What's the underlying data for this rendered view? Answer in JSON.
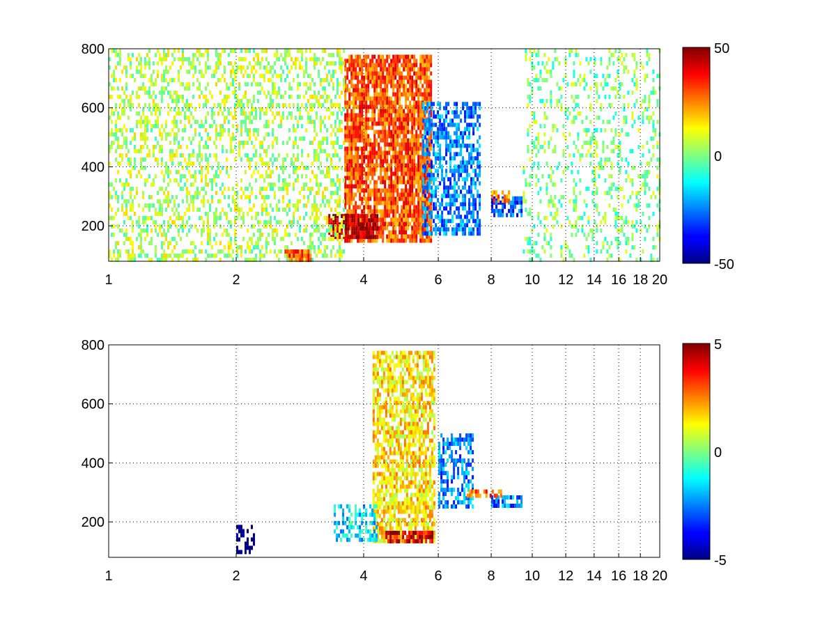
{
  "figure": {
    "background": "#ffffff",
    "colormap": "jet"
  },
  "chart_data": [
    {
      "type": "heatmap",
      "title": "",
      "xlabel": "",
      "ylabel": "",
      "x_scale": "log",
      "xlim": [
        1,
        20
      ],
      "ylim": [
        80,
        800
      ],
      "x_ticks": [
        1,
        2,
        4,
        6,
        8,
        10,
        12,
        14,
        16,
        18,
        20
      ],
      "x_tick_labels": [
        "1",
        "2",
        "4",
        "6",
        "8",
        "10",
        "12",
        "14",
        "16",
        "18",
        "20"
      ],
      "y_ticks": [
        200,
        400,
        600,
        800
      ],
      "y_tick_labels": [
        "200",
        "400",
        "600",
        "800"
      ],
      "grid": true,
      "colorbar": {
        "min": -50,
        "max": 50,
        "ticks": [
          50,
          0,
          -50
        ],
        "tick_labels": [
          "50",
          "0",
          "-50"
        ]
      },
      "features": [
        {
          "x": [
            3.6,
            5.8
          ],
          "y": [
            150,
            780
          ],
          "value": 30,
          "density": 0.85
        },
        {
          "x": [
            3.3,
            4.3
          ],
          "y": [
            160,
            240
          ],
          "value": 45,
          "density": 0.9
        },
        {
          "x": [
            5.5,
            7.5
          ],
          "y": [
            180,
            620
          ],
          "value": -25,
          "density": 0.6
        },
        {
          "x": [
            8.0,
            9.4
          ],
          "y": [
            240,
            300
          ],
          "value": -30,
          "density": 0.7
        },
        {
          "x": [
            8.0,
            8.8
          ],
          "y": [
            280,
            320
          ],
          "value": 25,
          "density": 0.6
        },
        {
          "x": [
            1.0,
            3.6
          ],
          "y": [
            80,
            800
          ],
          "value": 5,
          "density": 0.35
        },
        {
          "x": [
            2.6,
            3.0
          ],
          "y": [
            80,
            120
          ],
          "value": 30,
          "density": 0.8
        },
        {
          "x": [
            9.5,
            20.0
          ],
          "y": [
            80,
            800
          ],
          "value": 0,
          "density": 0.22
        }
      ]
    },
    {
      "type": "heatmap",
      "title": "",
      "xlabel": "",
      "ylabel": "",
      "x_scale": "log",
      "xlim": [
        1,
        20
      ],
      "ylim": [
        80,
        800
      ],
      "x_ticks": [
        1,
        2,
        4,
        6,
        8,
        10,
        12,
        14,
        16,
        18,
        20
      ],
      "x_tick_labels": [
        "1",
        "2",
        "4",
        "6",
        "8",
        "10",
        "12",
        "14",
        "16",
        "18",
        "20"
      ],
      "y_ticks": [
        200,
        400,
        600,
        800
      ],
      "y_tick_labels": [
        "200",
        "400",
        "600",
        "800"
      ],
      "grid": true,
      "colorbar": {
        "min": -5,
        "max": 5,
        "ticks": [
          5,
          0,
          -5
        ],
        "tick_labels": [
          "5",
          "0",
          "-5"
        ]
      },
      "features": [
        {
          "x": [
            4.2,
            5.9
          ],
          "y": [
            140,
            780
          ],
          "value": 1.5,
          "density": 0.7
        },
        {
          "x": [
            3.4,
            4.3
          ],
          "y": [
            140,
            260
          ],
          "value": -1.5,
          "density": 0.5
        },
        {
          "x": [
            4.5,
            5.8
          ],
          "y": [
            130,
            170
          ],
          "value": 4,
          "density": 0.8
        },
        {
          "x": [
            6.0,
            7.2
          ],
          "y": [
            250,
            500
          ],
          "value": -2.5,
          "density": 0.55
        },
        {
          "x": [
            8.0,
            9.4
          ],
          "y": [
            260,
            290
          ],
          "value": -2.5,
          "density": 0.7
        },
        {
          "x": [
            7.0,
            8.4
          ],
          "y": [
            290,
            310
          ],
          "value": 3,
          "density": 0.6
        },
        {
          "x": [
            2.0,
            2.2
          ],
          "y": [
            100,
            190
          ],
          "value": -5,
          "density": 0.5
        }
      ]
    }
  ]
}
